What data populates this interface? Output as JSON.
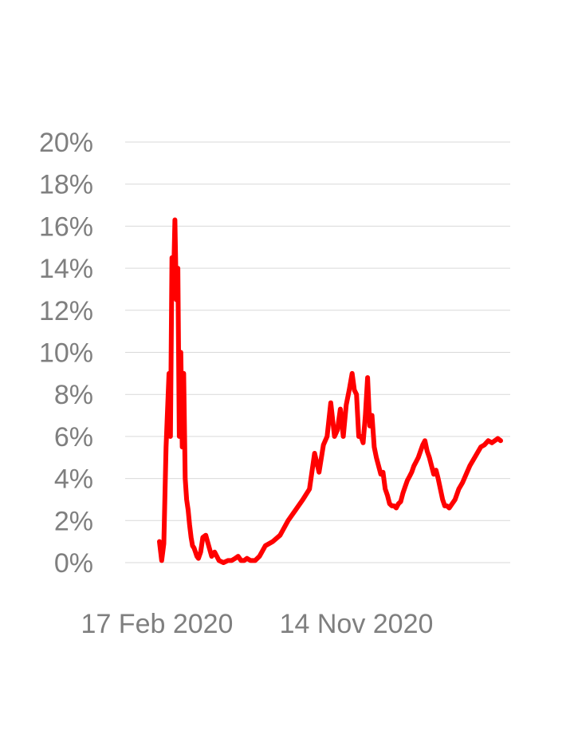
{
  "chart_data": {
    "type": "line",
    "title": "",
    "xlabel": "",
    "ylabel": "",
    "ylim": [
      0,
      20
    ],
    "yticks": [
      "0%",
      "2%",
      "4%",
      "6%",
      "8%",
      "10%",
      "12%",
      "14%",
      "16%",
      "18%",
      "20%"
    ],
    "ytick_values": [
      0,
      2,
      4,
      6,
      8,
      10,
      12,
      14,
      16,
      18,
      20
    ],
    "xtick_labels": [
      "17 Feb 2020",
      "14 Nov 2020"
    ],
    "xtick_dates": [
      "2020-02-17",
      "2020-11-14"
    ],
    "grid": true,
    "series": [
      {
        "color": "#ff0000",
        "x": [
          "2020-02-17",
          "2020-02-20",
          "2020-02-23",
          "2020-02-26",
          "2020-03-01",
          "2020-03-03",
          "2020-03-05",
          "2020-03-07",
          "2020-03-09",
          "2020-03-11",
          "2020-03-13",
          "2020-03-15",
          "2020-03-17",
          "2020-03-19",
          "2020-03-21",
          "2020-03-23",
          "2020-03-25",
          "2020-03-27",
          "2020-03-29",
          "2020-03-31",
          "2020-04-02",
          "2020-04-04",
          "2020-04-06",
          "2020-04-08",
          "2020-04-10",
          "2020-04-13",
          "2020-04-16",
          "2020-04-20",
          "2020-04-24",
          "2020-04-28",
          "2020-05-02",
          "2020-05-08",
          "2020-05-14",
          "2020-05-20",
          "2020-05-25",
          "2020-05-30",
          "2020-06-03",
          "2020-06-07",
          "2020-06-11",
          "2020-06-15",
          "2020-06-20",
          "2020-06-26",
          "2020-07-02",
          "2020-07-10",
          "2020-07-20",
          "2020-07-30",
          "2020-08-10",
          "2020-08-20",
          "2020-08-30",
          "2020-09-08",
          "2020-09-15",
          "2020-09-21",
          "2020-09-27",
          "2020-10-02",
          "2020-10-07",
          "2020-10-12",
          "2020-10-16",
          "2020-10-20",
          "2020-10-24",
          "2020-10-28",
          "2020-11-01",
          "2020-11-05",
          "2020-11-08",
          "2020-11-11",
          "2020-11-14",
          "2020-11-17",
          "2020-11-20",
          "2020-11-23",
          "2020-11-26",
          "2020-11-29",
          "2020-12-02",
          "2020-12-05",
          "2020-12-08",
          "2020-12-11",
          "2020-12-14",
          "2020-12-17",
          "2020-12-20",
          "2020-12-23",
          "2020-12-26",
          "2020-12-29",
          "2021-01-01",
          "2021-01-04",
          "2021-01-07",
          "2021-01-10",
          "2021-01-13",
          "2021-01-16",
          "2021-01-19",
          "2021-01-22",
          "2021-01-25",
          "2021-01-28",
          "2021-01-31",
          "2021-02-03",
          "2021-02-06",
          "2021-02-09",
          "2021-02-12",
          "2021-02-15",
          "2021-02-18",
          "2021-02-21",
          "2021-02-24",
          "2021-02-27",
          "2021-03-02",
          "2021-03-05",
          "2021-03-08",
          "2021-03-11",
          "2021-03-14",
          "2021-03-17",
          "2021-03-21",
          "2021-03-25",
          "2021-03-30",
          "2021-04-04",
          "2021-04-09",
          "2021-04-14",
          "2021-04-19",
          "2021-04-24",
          "2021-04-29",
          "2021-05-04",
          "2021-05-09",
          "2021-05-14",
          "2021-05-18",
          "2021-05-22",
          "2021-05-26"
        ],
        "y": [
          1.0,
          0.1,
          0.9,
          5.5,
          9.0,
          6.0,
          14.5,
          13.0,
          16.3,
          12.5,
          14.0,
          6.0,
          10.0,
          5.5,
          9.0,
          4.0,
          3.0,
          2.5,
          1.8,
          1.2,
          0.8,
          0.7,
          0.5,
          0.3,
          0.2,
          0.5,
          1.2,
          1.3,
          0.8,
          0.3,
          0.5,
          0.1,
          0.0,
          0.1,
          0.1,
          0.2,
          0.3,
          0.1,
          0.1,
          0.2,
          0.1,
          0.1,
          0.3,
          0.8,
          1.0,
          1.3,
          2.0,
          2.5,
          3.0,
          3.5,
          5.2,
          4.3,
          5.6,
          6.0,
          7.6,
          6.0,
          6.3,
          7.3,
          6.0,
          7.5,
          8.2,
          9.0,
          8.2,
          8.0,
          6.0,
          6.0,
          5.7,
          7.0,
          8.8,
          6.5,
          7.0,
          5.5,
          5.0,
          4.6,
          4.2,
          4.3,
          3.5,
          3.2,
          2.8,
          2.7,
          2.7,
          2.6,
          2.8,
          2.9,
          3.3,
          3.6,
          3.9,
          4.1,
          4.3,
          4.6,
          4.8,
          5.0,
          5.3,
          5.6,
          5.8,
          5.3,
          5.0,
          4.6,
          4.2,
          4.4,
          4.0,
          3.5,
          3.0,
          2.7,
          2.7,
          2.6,
          2.8,
          3.0,
          3.5,
          3.8,
          4.2,
          4.6,
          4.9,
          5.2,
          5.5,
          5.6,
          5.8,
          5.7,
          5.8,
          5.9,
          5.8
        ]
      }
    ]
  }
}
